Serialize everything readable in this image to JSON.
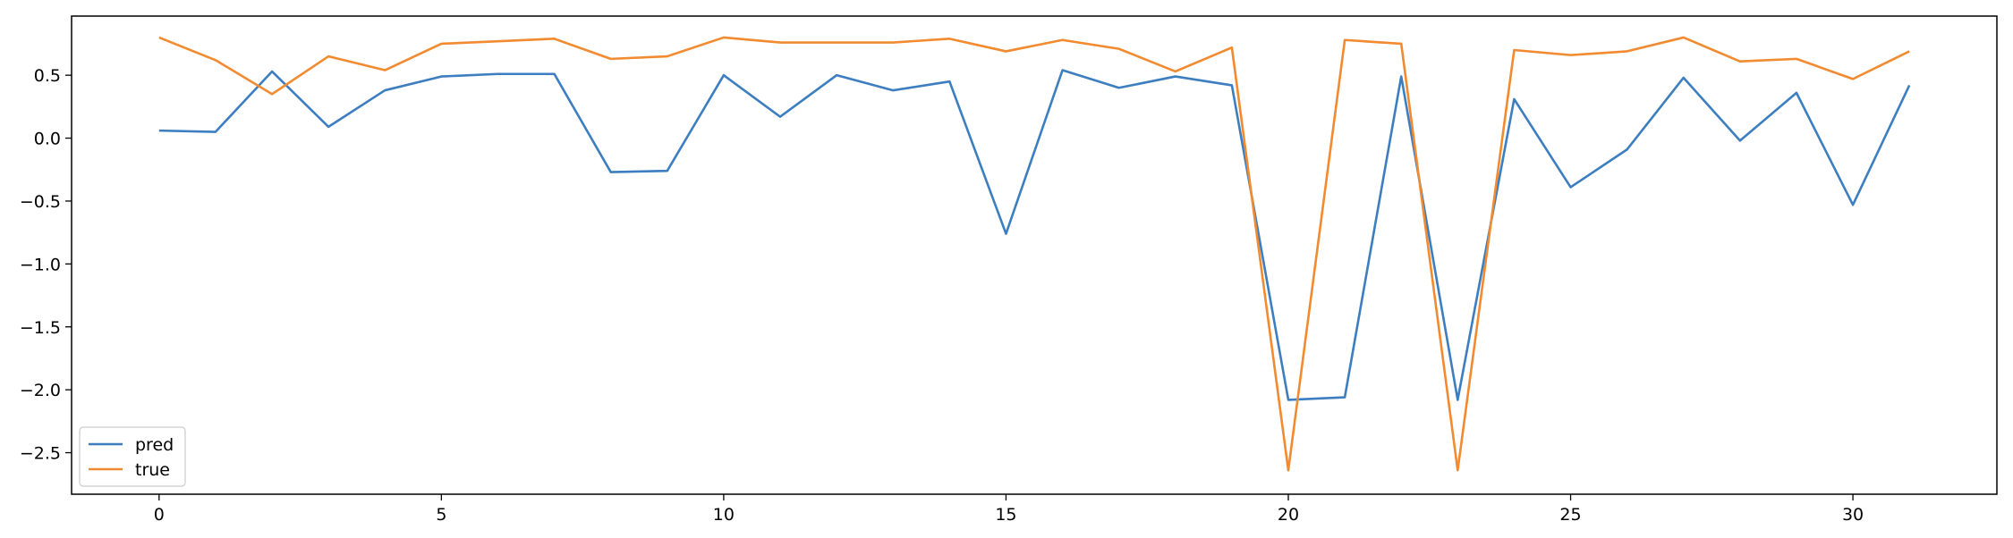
{
  "chart_data": {
    "type": "line",
    "title": "",
    "xlabel": "",
    "ylabel": "",
    "xlim": [
      -1.55,
      32.55
    ],
    "ylim": [
      -2.83,
      0.97
    ],
    "grid": false,
    "legend_placement": "lower-left",
    "x": [
      0,
      1,
      2,
      3,
      4,
      5,
      6,
      7,
      8,
      9,
      10,
      11,
      12,
      13,
      14,
      15,
      16,
      17,
      18,
      19,
      20,
      21,
      22,
      23,
      24,
      25,
      26,
      27,
      28,
      29,
      30,
      31
    ],
    "x_ticks": [
      0,
      5,
      10,
      15,
      20,
      25,
      30
    ],
    "y_ticks": [
      0.5,
      0.0,
      -0.5,
      -1.0,
      -1.5,
      -2.0,
      -2.5
    ],
    "x_tick_labels": [
      "0",
      "5",
      "10",
      "15",
      "20",
      "25",
      "30"
    ],
    "y_tick_labels": [
      "0.5",
      "0.0",
      "−0.5",
      "−1.0",
      "−1.5",
      "−2.0",
      "−2.5"
    ],
    "series": [
      {
        "name": "pred",
        "color": "#3c7ebf",
        "values": [
          0.06,
          0.05,
          0.53,
          0.09,
          0.38,
          0.49,
          0.51,
          0.51,
          -0.27,
          -0.26,
          0.5,
          0.17,
          0.5,
          0.38,
          0.45,
          -0.76,
          0.54,
          0.4,
          0.49,
          0.42,
          -2.08,
          -2.06,
          0.49,
          -2.08,
          0.31,
          -0.39,
          -0.09,
          0.48,
          -0.02,
          0.36,
          -0.53,
          0.42
        ]
      },
      {
        "name": "true",
        "color": "#f28a30",
        "values": [
          0.8,
          0.62,
          0.35,
          0.65,
          0.54,
          0.75,
          0.77,
          0.79,
          0.63,
          0.65,
          0.8,
          0.76,
          0.76,
          0.76,
          0.79,
          0.69,
          0.78,
          0.71,
          0.53,
          0.72,
          -2.64,
          0.78,
          0.75,
          -2.64,
          0.7,
          0.66,
          0.69,
          0.8,
          0.61,
          0.63,
          0.47,
          0.69
        ]
      }
    ]
  }
}
